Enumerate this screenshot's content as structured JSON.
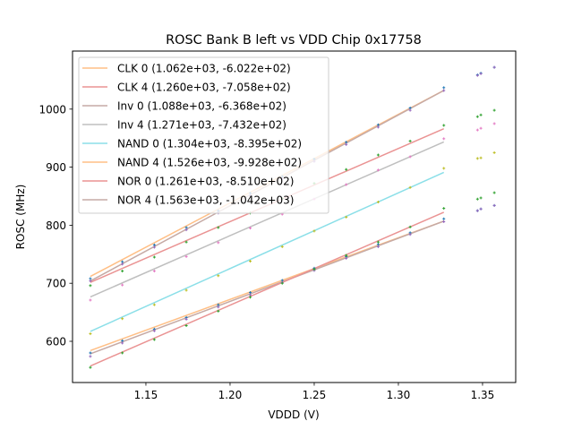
{
  "chart_data": {
    "type": "line",
    "title": "ROSC Bank B left vs VDD Chip 0x17758",
    "xlabel": "VDDD (V)",
    "ylabel": "ROSC (MHz)",
    "xlim": [
      1.1064,
      1.3697
    ],
    "ylim": [
      529,
      1100
    ],
    "grid": false,
    "legend_position": "top-left",
    "xticks": [
      {
        "value": 1.15,
        "label": "1.15"
      },
      {
        "value": 1.2,
        "label": "1.20"
      },
      {
        "value": 1.25,
        "label": "1.25"
      },
      {
        "value": 1.3,
        "label": "1.30"
      },
      {
        "value": 1.35,
        "label": "1.35"
      }
    ],
    "yticks": [
      {
        "value": 600,
        "label": "600"
      },
      {
        "value": 700,
        "label": "700"
      },
      {
        "value": 800,
        "label": "800"
      },
      {
        "value": 900,
        "label": "900"
      },
      {
        "value": 1000,
        "label": "1000"
      }
    ],
    "fit_range": [
      1.117,
      1.327
    ],
    "fit_lines": [
      {
        "name": "CLK 0",
        "label": "CLK 0 (1.062e+03, -6.022e+02)",
        "slope": 1062,
        "intercept": -602.2,
        "color": "#ffbf86"
      },
      {
        "name": "CLK 4",
        "label": "CLK 4 (1.260e+03, -7.058e+02)",
        "slope": 1260,
        "intercept": -705.8,
        "color": "#ea9393"
      },
      {
        "name": "Inv 0",
        "label": "Inv 0 (1.088e+03, -6.368e+02)",
        "slope": 1088,
        "intercept": -636.8,
        "color": "#c6aaa5"
      },
      {
        "name": "Inv 4",
        "label": "Inv 4 (1.271e+03, -7.432e+02)",
        "slope": 1271,
        "intercept": -743.2,
        "color": "#bfbfbf"
      },
      {
        "name": "NAND 0",
        "label": "NAND 0 (1.304e+03, -8.395e+02)",
        "slope": 1304,
        "intercept": -839.5,
        "color": "#8bdfe8"
      },
      {
        "name": "NAND 4",
        "label": "NAND 4 (1.526e+03, -9.928e+02)",
        "slope": 1526,
        "intercept": -992.8,
        "color": "#ffbf86"
      },
      {
        "name": "NOR 0",
        "label": "NOR 0 (1.261e+03, -8.510e+02)",
        "slope": 1261,
        "intercept": -851.0,
        "color": "#ea9393"
      },
      {
        "name": "NOR 4",
        "label": "NOR 4 (1.563e+03, -1.042e+03)",
        "slope": 1563,
        "intercept": -1042.0,
        "color": "#c6aaa5"
      }
    ],
    "scatter_x": [
      1.117,
      1.136,
      1.155,
      1.174,
      1.193,
      1.212,
      1.231,
      1.25,
      1.269,
      1.288,
      1.307,
      1.327,
      1.347,
      1.349,
      1.357
    ],
    "scatter_series": [
      {
        "name": "points-blue-upper",
        "color": "#1f77b4",
        "values": [
          708,
          737,
          766,
          796,
          825,
          855,
          884,
          914,
          943,
          973,
          1002,
          1037,
          1059,
          1062,
          1072
        ]
      },
      {
        "name": "points-purple-upper",
        "color": "#9467bd",
        "values": [
          704,
          733,
          762,
          792,
          821,
          851,
          880,
          910,
          939,
          969,
          998,
          1032,
          1058,
          1061,
          1072
        ]
      },
      {
        "name": "points-green-upper",
        "color": "#2ca02c",
        "values": [
          696,
          721,
          745,
          771,
          796,
          821,
          846,
          872,
          896,
          921,
          945,
          972,
          987,
          990,
          998
        ]
      },
      {
        "name": "points-pink",
        "color": "#e377c2",
        "values": [
          671,
          697,
          721,
          746,
          770,
          795,
          819,
          845,
          870,
          895,
          918,
          949,
          964,
          967,
          975
        ]
      },
      {
        "name": "points-yellow",
        "color": "#bcbd22",
        "values": [
          613,
          639,
          663,
          688,
          713,
          738,
          763,
          790,
          814,
          840,
          865,
          898,
          915,
          916,
          925
        ]
      },
      {
        "name": "points-blue-lower",
        "color": "#1f77b4",
        "values": [
          580,
          601,
          621,
          641,
          663,
          684,
          705,
          726,
          746,
          767,
          787,
          811,
          825,
          828,
          834
        ]
      },
      {
        "name": "points-purple-lower",
        "color": "#9467bd",
        "values": [
          574,
          597,
          618,
          638,
          659,
          680,
          701,
          722,
          743,
          763,
          784,
          806,
          825,
          828,
          834
        ]
      },
      {
        "name": "points-green-lower",
        "color": "#2ca02c",
        "values": [
          555,
          580,
          603,
          627,
          652,
          676,
          700,
          724,
          748,
          771,
          797,
          829,
          845,
          847,
          856
        ]
      }
    ]
  }
}
